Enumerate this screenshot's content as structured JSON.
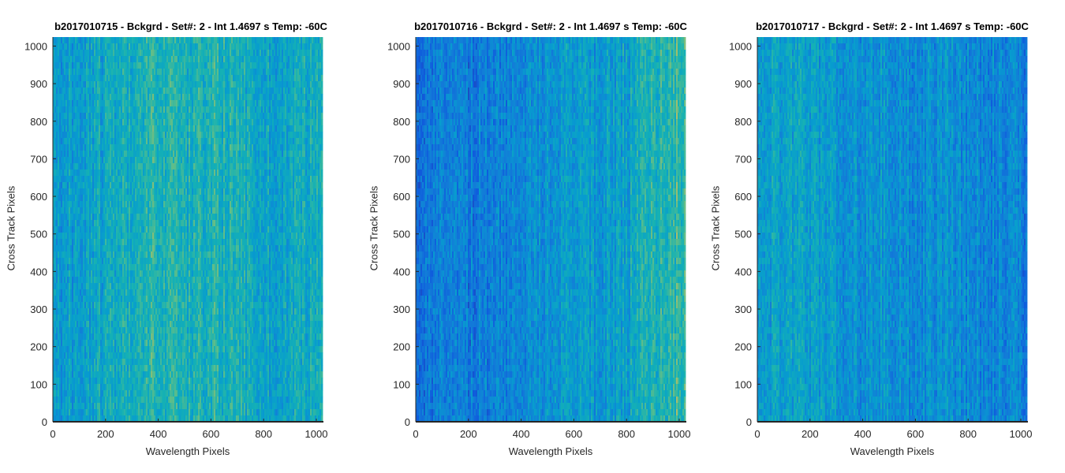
{
  "chart_data": [
    {
      "type": "heatmap",
      "title": "b2017010715 - Bckgrd - Set#: 2 - Int 1.4697 s Temp: -60C",
      "xlabel": "Wavelength Pixels",
      "ylabel": "Cross Track Pixels",
      "xlim": [
        0,
        1024
      ],
      "ylim": [
        0,
        1024
      ],
      "xticks": [
        0,
        200,
        400,
        600,
        800,
        1000
      ],
      "yticks": [
        0,
        100,
        200,
        300,
        400,
        500,
        600,
        700,
        800,
        900,
        1000
      ],
      "colormap": "parula",
      "column_intensity_profile": {
        "x": [
          0,
          100,
          200,
          300,
          400,
          500,
          600,
          700,
          800,
          900,
          1024
        ],
        "relative_level": [
          0.45,
          0.48,
          0.52,
          0.58,
          0.62,
          0.58,
          0.62,
          0.56,
          0.5,
          0.52,
          0.56
        ]
      }
    },
    {
      "type": "heatmap",
      "title": "b2017010716 - Bckgrd - Set#: 2 - Int 1.4697 s Temp: -60C",
      "xlabel": "Wavelength Pixels",
      "ylabel": "Cross Track Pixels",
      "xlim": [
        0,
        1024
      ],
      "ylim": [
        0,
        1024
      ],
      "xticks": [
        0,
        200,
        400,
        600,
        800,
        1000
      ],
      "yticks": [
        0,
        100,
        200,
        300,
        400,
        500,
        600,
        700,
        800,
        900,
        1000
      ],
      "colormap": "parula",
      "column_intensity_profile": {
        "x": [
          0,
          100,
          200,
          300,
          400,
          500,
          600,
          700,
          800,
          900,
          1024
        ],
        "relative_level": [
          0.3,
          0.28,
          0.3,
          0.32,
          0.36,
          0.4,
          0.46,
          0.44,
          0.48,
          0.62,
          0.68
        ]
      }
    },
    {
      "type": "heatmap",
      "title": "b2017010717 - Bckgrd - Set#: 2 - Int 1.4697 s Temp: -60C",
      "xlabel": "Wavelength Pixels",
      "ylabel": "Cross Track Pixels",
      "xlim": [
        0,
        1024
      ],
      "ylim": [
        0,
        1024
      ],
      "xticks": [
        0,
        200,
        400,
        600,
        800,
        1000
      ],
      "yticks": [
        0,
        100,
        200,
        300,
        400,
        500,
        600,
        700,
        800,
        900,
        1000
      ],
      "colormap": "parula",
      "column_intensity_profile": {
        "x": [
          0,
          100,
          200,
          300,
          400,
          500,
          600,
          700,
          800,
          900,
          1024
        ],
        "relative_level": [
          0.48,
          0.5,
          0.46,
          0.42,
          0.4,
          0.42,
          0.38,
          0.4,
          0.36,
          0.34,
          0.32
        ]
      }
    }
  ]
}
